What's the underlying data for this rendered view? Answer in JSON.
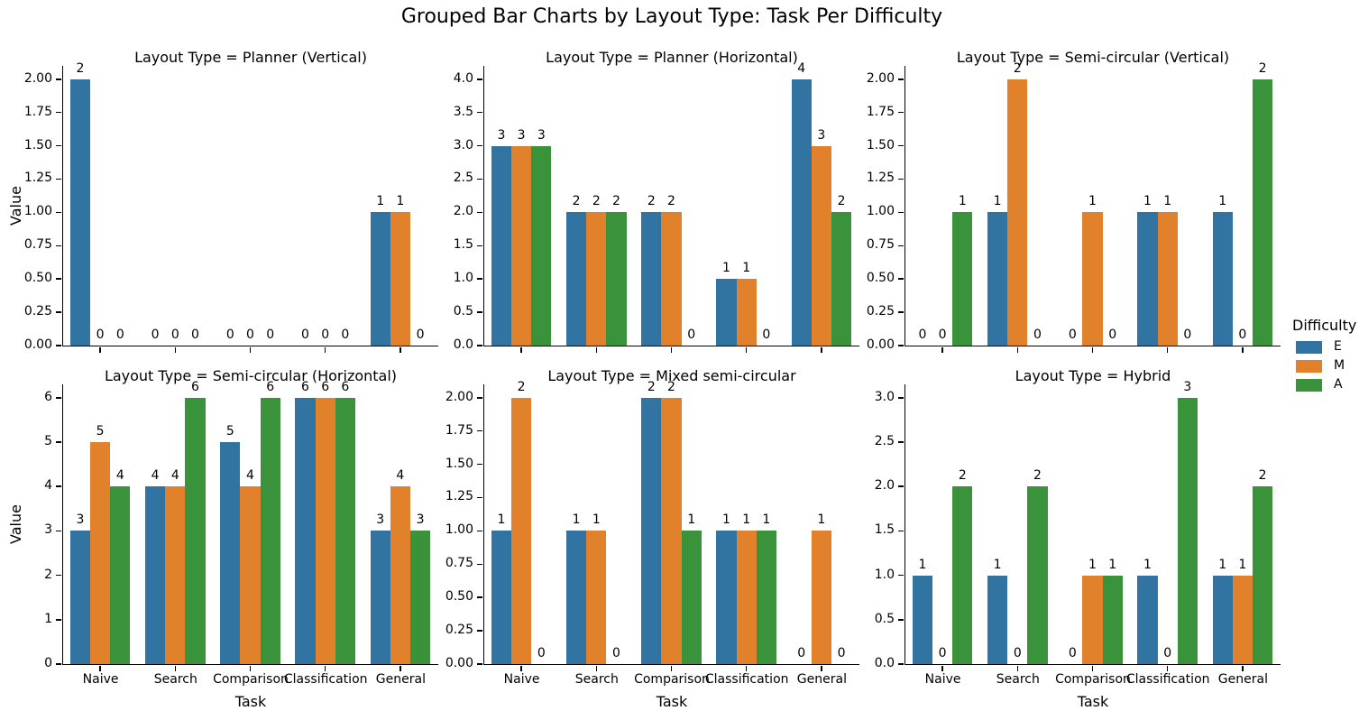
{
  "title": "Grouped Bar Charts by Layout Type: Task Per Difficulty",
  "legend": {
    "title": "Difficulty",
    "position": "right",
    "entries": [
      {
        "label": "E",
        "color": "#3274a1"
      },
      {
        "label": "M",
        "color": "#e1812c"
      },
      {
        "label": "A",
        "color": "#3a923a"
      }
    ]
  },
  "chart_data": {
    "type": "bar",
    "grouping": "grouped",
    "grid": false,
    "categories": [
      "Naive",
      "Search",
      "Comparison",
      "Classification",
      "General"
    ],
    "xlabel": "Task",
    "ylabel": "Value",
    "series_names": [
      "E",
      "M",
      "A"
    ],
    "series_colors": [
      "#3274a1",
      "#e1812c",
      "#3a923a"
    ],
    "subplots": [
      {
        "title": "Layout Type = Planner (Vertical)",
        "ylim": [
          0,
          2.1
        ],
        "yticks": [
          "0.00",
          "0.25",
          "0.50",
          "0.75",
          "1.00",
          "1.25",
          "1.50",
          "1.75",
          "2.00"
        ],
        "series": [
          {
            "name": "E",
            "values": [
              2,
              0,
              0,
              0,
              1
            ]
          },
          {
            "name": "M",
            "values": [
              0,
              0,
              0,
              0,
              1
            ]
          },
          {
            "name": "A",
            "values": [
              0,
              0,
              0,
              0,
              0
            ]
          }
        ]
      },
      {
        "title": "Layout Type = Planner (Horizontal)",
        "ylim": [
          0,
          4.2
        ],
        "yticks": [
          "0.0",
          "0.5",
          "1.0",
          "1.5",
          "2.0",
          "2.5",
          "3.0",
          "3.5",
          "4.0"
        ],
        "series": [
          {
            "name": "E",
            "values": [
              3,
              2,
              2,
              1,
              4
            ]
          },
          {
            "name": "M",
            "values": [
              3,
              2,
              2,
              1,
              3
            ]
          },
          {
            "name": "A",
            "values": [
              3,
              2,
              0,
              0,
              2
            ]
          }
        ]
      },
      {
        "title": "Layout Type = Semi-circular (Vertical)",
        "ylim": [
          0,
          2.1
        ],
        "yticks": [
          "0.00",
          "0.25",
          "0.50",
          "0.75",
          "1.00",
          "1.25",
          "1.50",
          "1.75",
          "2.00"
        ],
        "series": [
          {
            "name": "E",
            "values": [
              0,
              1,
              0,
              1,
              1
            ]
          },
          {
            "name": "M",
            "values": [
              0,
              2,
              1,
              1,
              0
            ]
          },
          {
            "name": "A",
            "values": [
              1,
              0,
              0,
              0,
              2
            ]
          }
        ]
      },
      {
        "title": "Layout Type = Semi-circular (Horizontal)",
        "ylim": [
          0,
          6.3
        ],
        "yticks": [
          "0",
          "1",
          "2",
          "3",
          "4",
          "5",
          "6"
        ],
        "series": [
          {
            "name": "E",
            "values": [
              3,
              4,
              5,
              6,
              3
            ]
          },
          {
            "name": "M",
            "values": [
              5,
              4,
              4,
              6,
              4
            ]
          },
          {
            "name": "A",
            "values": [
              4,
              6,
              6,
              6,
              3
            ]
          }
        ]
      },
      {
        "title": "Layout Type = Mixed semi-circular",
        "ylim": [
          0,
          2.1
        ],
        "yticks": [
          "0.00",
          "0.25",
          "0.50",
          "0.75",
          "1.00",
          "1.25",
          "1.50",
          "1.75",
          "2.00"
        ],
        "series": [
          {
            "name": "E",
            "values": [
              1,
              1,
              2,
              1,
              0
            ]
          },
          {
            "name": "M",
            "values": [
              2,
              1,
              2,
              1,
              1
            ]
          },
          {
            "name": "A",
            "values": [
              0,
              0,
              1,
              1,
              0
            ]
          }
        ]
      },
      {
        "title": "Layout Type = Hybrid",
        "ylim": [
          0,
          3.15
        ],
        "yticks": [
          "0.0",
          "0.5",
          "1.0",
          "1.5",
          "2.0",
          "2.5",
          "3.0"
        ],
        "series": [
          {
            "name": "E",
            "values": [
              1,
              1,
              0,
              1,
              1
            ]
          },
          {
            "name": "M",
            "values": [
              0,
              0,
              1,
              0,
              1
            ]
          },
          {
            "name": "A",
            "values": [
              2,
              2,
              1,
              3,
              2
            ]
          }
        ]
      }
    ]
  }
}
